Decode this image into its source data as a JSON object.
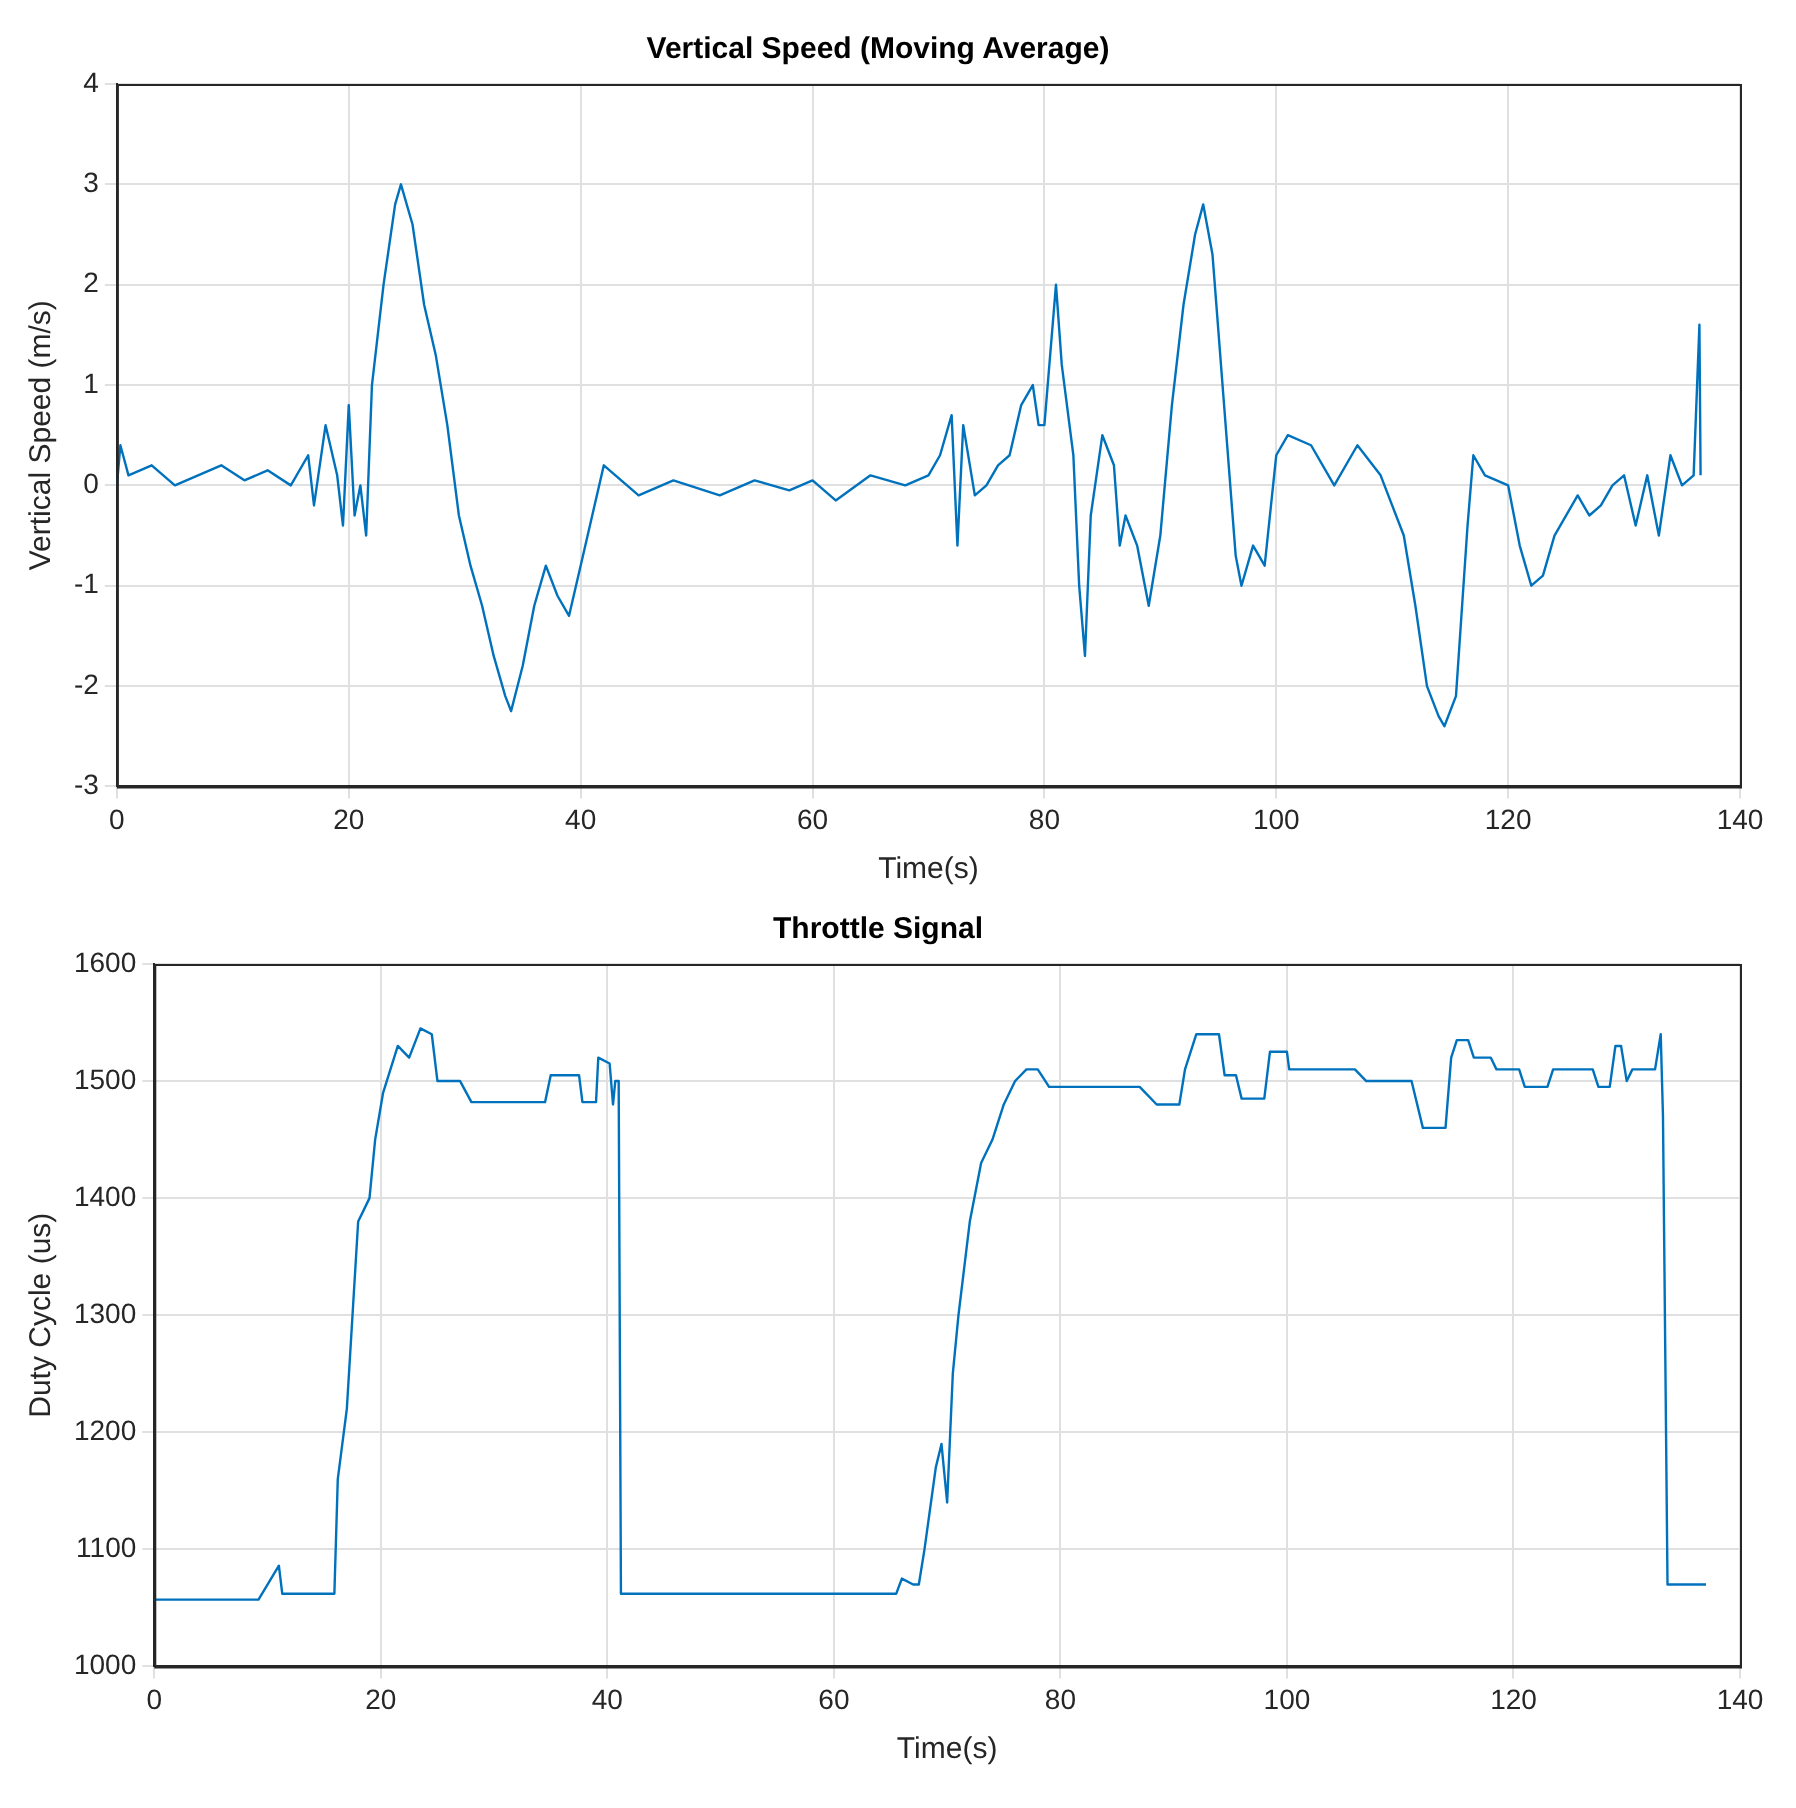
{
  "chart_data": [
    {
      "type": "line",
      "title": "Vertical Speed (Moving Average)",
      "xlabel": "Time(s)",
      "ylabel": "Vertical Speed (m/s)",
      "xlim": [
        0,
        140
      ],
      "xticks": [
        0,
        20,
        40,
        60,
        80,
        100,
        120,
        140
      ],
      "ylim": [
        -3,
        4
      ],
      "yticks": [
        -3,
        -2,
        -1,
        0,
        1,
        2,
        3,
        4
      ],
      "grid": true,
      "marker": "none",
      "series": [
        {
          "color": "#0072bd",
          "x": [
            0,
            0.3,
            1,
            3,
            5,
            7,
            9,
            11,
            13,
            15,
            16.5,
            17,
            18,
            19,
            19.5,
            20,
            20.5,
            21,
            21.5,
            22,
            23,
            24,
            24.5,
            25.5,
            26.5,
            27.5,
            28.5,
            29.5,
            30.5,
            31.5,
            32.5,
            33.5,
            34,
            35,
            36,
            37,
            38,
            39,
            40,
            41,
            42,
            43,
            45,
            48,
            52,
            55,
            58,
            60,
            62,
            65,
            68,
            70,
            71,
            72,
            72.5,
            73,
            74,
            75,
            76,
            77,
            78,
            79,
            79.5,
            80,
            80.5,
            81,
            81.5,
            82.5,
            83,
            83.5,
            84,
            85,
            86,
            86.5,
            87,
            88,
            89,
            90,
            91,
            92,
            93,
            93.7,
            94.5,
            95.5,
            96.5,
            97,
            98,
            99,
            100,
            101,
            103,
            105,
            107,
            109,
            111,
            112,
            113,
            114,
            114.5,
            115.5,
            116.5,
            117,
            118,
            120,
            121,
            122,
            123,
            124,
            126,
            127,
            128,
            129,
            130,
            131,
            132,
            133,
            134,
            135,
            136,
            136.5,
            136.6
          ],
          "values": [
            0,
            0.4,
            0.1,
            0.2,
            0,
            0.1,
            0.2,
            0.05,
            0.15,
            0,
            0.3,
            -0.2,
            0.6,
            0.1,
            -0.4,
            0.8,
            -0.3,
            0,
            -0.5,
            1,
            2,
            2.8,
            3,
            2.6,
            1.8,
            1.3,
            0.6,
            -0.3,
            -0.8,
            -1.2,
            -1.7,
            -2.1,
            -2.25,
            -1.8,
            -1.2,
            -0.8,
            -1.1,
            -1.3,
            -0.8,
            -0.3,
            0.2,
            0.1,
            -0.1,
            0.05,
            -0.1,
            0.05,
            -0.05,
            0.05,
            -0.15,
            0.1,
            0,
            0.1,
            0.3,
            0.7,
            -0.6,
            0.6,
            -0.1,
            0,
            0.2,
            0.3,
            0.8,
            1,
            0.6,
            0.6,
            1.3,
            2,
            1.2,
            0.3,
            -1,
            -1.7,
            -0.3,
            0.5,
            0.2,
            -0.6,
            -0.3,
            -0.6,
            -1.2,
            -0.5,
            0.8,
            1.8,
            2.5,
            2.8,
            2.3,
            0.8,
            -0.7,
            -1,
            -0.6,
            -0.8,
            0.3,
            0.5,
            0.4,
            0,
            0.4,
            0.1,
            -0.5,
            -1.2,
            -2,
            -2.3,
            -2.4,
            -2.1,
            -0.4,
            0.3,
            0.1,
            0,
            -0.6,
            -1,
            -0.9,
            -0.5,
            -0.1,
            -0.3,
            -0.2,
            0,
            0.1,
            -0.4,
            0.1,
            -0.5,
            0.3,
            0,
            0.1,
            1.6,
            0.1
          ]
        }
      ]
    },
    {
      "type": "line",
      "title": "Throttle Signal",
      "xlabel": "Time(s)",
      "ylabel": "Duty Cycle (us)",
      "xlim": [
        0,
        140
      ],
      "xticks": [
        0,
        20,
        40,
        60,
        80,
        100,
        120,
        140
      ],
      "ylim": [
        1000,
        1600
      ],
      "yticks": [
        1000,
        1100,
        1200,
        1300,
        1400,
        1500,
        1600
      ],
      "grid": true,
      "marker": "none",
      "series": [
        {
          "color": "#0072bd",
          "x": [
            0,
            9.2,
            11,
            11.3,
            15.9,
            16.2,
            17,
            17.5,
            18,
            19,
            19.5,
            20.2,
            21.5,
            22.5,
            23.5,
            24.5,
            25,
            27,
            28,
            34.5,
            35,
            37.5,
            37.8,
            39,
            39.2,
            40.2,
            40.5,
            40.7,
            41,
            41.2,
            65.5,
            66,
            67,
            67.5,
            68,
            69,
            69.5,
            70,
            70.5,
            71,
            72,
            73,
            74,
            75,
            76,
            77,
            78,
            79,
            87,
            88.5,
            90.5,
            91,
            92,
            94,
            94.5,
            95.5,
            96,
            98,
            98.5,
            100,
            100.2,
            106,
            107,
            111,
            112,
            114,
            114.5,
            115,
            116,
            116.5,
            118,
            118.5,
            120.5,
            121,
            123,
            123.5,
            127,
            127.5,
            128.5,
            129,
            129.5,
            130,
            130.5,
            132.5,
            133,
            133.2,
            133.4,
            133.6,
            137
          ],
          "values": [
            1057,
            1057,
            1086,
            1062,
            1062,
            1160,
            1220,
            1300,
            1380,
            1400,
            1450,
            1490,
            1530,
            1520,
            1545,
            1540,
            1500,
            1500,
            1482,
            1482,
            1505,
            1505,
            1482,
            1482,
            1520,
            1515,
            1480,
            1500,
            1500,
            1062,
            1062,
            1075,
            1070,
            1070,
            1100,
            1170,
            1190,
            1140,
            1250,
            1300,
            1380,
            1430,
            1450,
            1480,
            1500,
            1510,
            1510,
            1495,
            1495,
            1480,
            1480,
            1510,
            1540,
            1540,
            1505,
            1505,
            1485,
            1485,
            1525,
            1525,
            1510,
            1510,
            1500,
            1500,
            1460,
            1460,
            1520,
            1535,
            1535,
            1520,
            1520,
            1510,
            1510,
            1495,
            1495,
            1510,
            1510,
            1495,
            1495,
            1530,
            1530,
            1500,
            1510,
            1510,
            1540,
            1470,
            1270,
            1070,
            1070
          ]
        }
      ]
    }
  ]
}
